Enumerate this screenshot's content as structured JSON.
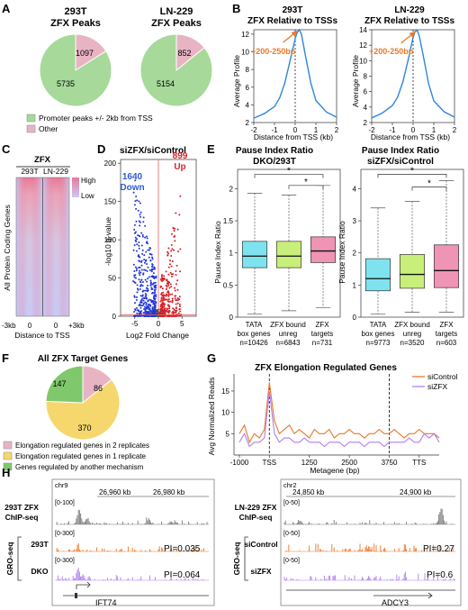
{
  "panel_letters": {
    "A": "A",
    "B": "B",
    "C": "C",
    "D": "D",
    "E": "E",
    "F": "F",
    "G": "G",
    "H": "H"
  },
  "panelA": {
    "pie1_title_line1": "293T",
    "pie1_title_line2": "ZFX Peaks",
    "pie2_title_line1": "LN-229",
    "pie2_title_line2": "ZFX Peaks",
    "legend_promoter": "Promoter peaks +/- 2kb from TSS",
    "legend_other": "Other",
    "colors": {
      "promoter": "#a6d99a",
      "other": "#e8b4c4"
    }
  },
  "panelB": {
    "plot1_title_line1": "293T",
    "plot1_title_line2": "ZFX Relative to TSSs",
    "plot2_title_line1": "LN-229",
    "plot2_title_line2": "ZFX Relative to TSSs",
    "annotation": "+200-250bp",
    "ylabel": "Average Profile",
    "xlabel": "Distance from TSS (kb)",
    "line_color": "#2e86de",
    "arrow_color": "#e8792b"
  },
  "panelC": {
    "title": "ZFX",
    "col1": "293T",
    "col2": "LN-229",
    "legend_high": "High",
    "legend_low": "Low",
    "ylabel": "All Protein Coding Genes",
    "tick_left": "-3kb",
    "tick_mid": "0",
    "tick_mid2": "0",
    "tick_right": "+3kb",
    "xlabel": "Distance to TSS"
  },
  "panelD": {
    "title": "siZFX/siControl",
    "down_count": "1640",
    "down_label": "Down",
    "up_count": "899",
    "up_label": "Up",
    "ylabel": "-log10 q-value",
    "xlabel": "Log2 Fold Change"
  },
  "panelE": {
    "plot1_title_line1": "Pause Index Ratio",
    "plot1_title_line2": "DKO/293T",
    "plot2_title_line1": "Pause Index Ratio",
    "plot2_title_line2": "siZFX/siControl",
    "ylabel": "Pause Index Ratio",
    "star": "*",
    "groups1": [
      {
        "name1": "TATA",
        "name2": "box genes",
        "n": "n=10426"
      },
      {
        "name1": "ZFX bound",
        "name2": "unreg",
        "n": "n=6843"
      },
      {
        "name1": "ZFX",
        "name2": "targets",
        "n": "n=731"
      }
    ],
    "groups2": [
      {
        "name1": "TATA",
        "name2": "box genes",
        "n": "n=9773"
      },
      {
        "name1": "ZFX bound",
        "name2": "unreg",
        "n": "n=3520"
      },
      {
        "name1": "ZFX",
        "name2": "targets",
        "n": "n=603"
      }
    ],
    "colors": [
      "#7fe3ef",
      "#c8ef7a",
      "#ef94b4"
    ]
  },
  "panelF": {
    "title": "All ZFX Target Genes",
    "legend": [
      {
        "label": "Elongation regulated genes in 2 replicates",
        "color": "#e8b4c4"
      },
      {
        "label": "Elongation regulated genes in 1 replicate",
        "color": "#f5d76e"
      },
      {
        "label": "Genes regulated by another mechanism",
        "color": "#7fc86b"
      }
    ]
  },
  "panelG": {
    "title": "ZFX Elongation Regulated Genes",
    "ylabel": "Avg Normalized Reads",
    "xlabel": "Metagene (bp)",
    "legend_sicontrol": "siControl",
    "legend_sizfx": "siZFX",
    "colors": {
      "siControl": "#e8792b",
      "siZFX": "#b07ff0"
    }
  },
  "panelH": {
    "left": {
      "chrom": "chr9",
      "coord1": "26,960 kb",
      "coord2": "26,980 kb",
      "chip_label_line1": "293T ZFX",
      "chip_label_line2": "ChIP-seq",
      "chip_range": "[0-100]",
      "gro_range1": "[0-300]",
      "gro_range2": "[0-300]",
      "row1": "293T",
      "row2": "DKO",
      "gro_label": "GRO-seq",
      "pi1": "PI=0.035",
      "pi2": "PI=0.064",
      "gene": "IFT74"
    },
    "right": {
      "chrom": "chr2",
      "coord1": "24,850 kb",
      "coord2": "24,900 kb",
      "chip_label_line1": "LN-229 ZFX",
      "chip_label_line2": "ChIP-seq",
      "chip_range": "[0-50]",
      "gro_range1": "[0-50]",
      "gro_range2": "[0-50]",
      "row1": "siControl",
      "row2": "siZFX",
      "gro_label": "GRO-seq",
      "pi1": "PI=0.27",
      "pi2": "PI=0.6",
      "gene": "ADCY3"
    },
    "colors": {
      "chip": "#7a7a7a",
      "gro1": "#e8792b",
      "gro2": "#b07ff0"
    }
  },
  "chart_data": [
    {
      "type": "pie",
      "title": "293T ZFX Peaks",
      "categories": [
        "Promoter peaks +/- 2kb from TSS",
        "Other"
      ],
      "values": [
        5735,
        1097
      ]
    },
    {
      "type": "pie",
      "title": "LN-229 ZFX Peaks",
      "categories": [
        "Promoter peaks +/- 2kb from TSS",
        "Other"
      ],
      "values": [
        5154,
        852
      ]
    },
    {
      "type": "line",
      "title": "293T ZFX Relative to TSSs",
      "xlabel": "Distance from TSS (kb)",
      "ylabel": "Average Profile",
      "xlim": [
        -2,
        2
      ],
      "ylim": [
        2,
        12.5
      ],
      "xticks": [
        -2,
        -1,
        0,
        1,
        2
      ],
      "yticks": [
        2,
        4,
        6,
        8,
        10,
        12
      ],
      "x": [
        -2,
        -1.5,
        -1,
        -0.75,
        -0.5,
        -0.25,
        0,
        0.1,
        0.2,
        0.3,
        0.5,
        0.75,
        1,
        1.5,
        2
      ],
      "y": [
        2.5,
        3.0,
        3.8,
        4.8,
        6.5,
        9.0,
        11.5,
        12.2,
        12.5,
        12.0,
        9.5,
        6.5,
        4.5,
        3.2,
        2.6
      ]
    },
    {
      "type": "line",
      "title": "LN-229 ZFX Relative to TSSs",
      "xlabel": "Distance from TSS (kb)",
      "ylabel": "Average Profile",
      "xlim": [
        -2,
        2
      ],
      "ylim": [
        2,
        14
      ],
      "xticks": [
        -2,
        -1,
        0,
        1,
        2
      ],
      "yticks": [
        2,
        4,
        6,
        8,
        10,
        12,
        14
      ],
      "x": [
        -2,
        -1.5,
        -1,
        -0.75,
        -0.5,
        -0.25,
        0,
        0.1,
        0.2,
        0.3,
        0.5,
        0.75,
        1,
        1.5,
        2
      ],
      "y": [
        2.6,
        3.2,
        4.2,
        5.3,
        7.2,
        10.0,
        13.0,
        13.8,
        13.9,
        13.2,
        10.5,
        7.0,
        4.8,
        3.4,
        2.7
      ]
    },
    {
      "type": "heatmap",
      "title": "ZFX",
      "columns": [
        "293T",
        "LN-229"
      ],
      "xlabel": "Distance to TSS",
      "ylabel": "All Protein Coding Genes",
      "legend": [
        "High",
        "Low"
      ]
    },
    {
      "type": "scatter",
      "title": "siZFX/siControl",
      "xlabel": "Log2 Fold Change",
      "ylabel": "-log10 q-value",
      "xlim": [
        -8,
        8
      ],
      "ylim": [
        0,
        205
      ],
      "xticks": [
        -5,
        0,
        5
      ],
      "yticks": [
        0,
        50,
        100,
        150,
        200
      ],
      "series": [
        {
          "name": "Down",
          "count": 1640
        },
        {
          "name": "Up",
          "count": 899
        }
      ]
    },
    {
      "type": "box",
      "title": "Pause Index Ratio DKO/293T",
      "ylabel": "Pause Index Ratio",
      "ylim": [
        0,
        2.3
      ],
      "yticks": [
        0,
        0.5,
        1,
        1.5,
        2
      ],
      "categories": [
        "TATA box genes",
        "ZFX bound unreg",
        "ZFX targets"
      ],
      "n": [
        10426,
        6843,
        731
      ],
      "boxes": [
        {
          "whisker_low": 0.05,
          "q1": 0.77,
          "median": 0.95,
          "q3": 1.18,
          "whisker_high": 1.93
        },
        {
          "whisker_low": 0.1,
          "q1": 0.77,
          "median": 0.95,
          "q3": 1.18,
          "whisker_high": 1.9
        },
        {
          "whisker_low": 0.15,
          "q1": 0.85,
          "median": 1.03,
          "q3": 1.25,
          "whisker_high": 2.05
        }
      ]
    },
    {
      "type": "box",
      "title": "Pause Index Ratio siZFX/siControl",
      "ylabel": "Pause Index Ratio",
      "ylim": [
        0,
        4.6
      ],
      "yticks": [
        0,
        1,
        2,
        3,
        4
      ],
      "categories": [
        "TATA box genes",
        "ZFX bound unreg",
        "ZFX targets"
      ],
      "n": [
        9773,
        3520,
        603
      ],
      "boxes": [
        {
          "whisker_low": 0.1,
          "q1": 0.82,
          "median": 1.2,
          "q3": 1.82,
          "whisker_high": 3.4
        },
        {
          "whisker_low": 0.15,
          "q1": 0.9,
          "median": 1.33,
          "q3": 1.95,
          "whisker_high": 3.6
        },
        {
          "whisker_low": 0.15,
          "q1": 0.92,
          "median": 1.45,
          "q3": 2.25,
          "whisker_high": 4.25
        }
      ]
    },
    {
      "type": "pie",
      "title": "All ZFX Target Genes",
      "categories": [
        "Elongation regulated genes in 2 replicates",
        "Elongation regulated genes in 1 replicate",
        "Genes regulated by another mechanism"
      ],
      "values": [
        86,
        370,
        147
      ]
    },
    {
      "type": "line",
      "title": "ZFX Elongation Regulated Genes",
      "xlabel": "Metagene (bp)",
      "ylabel": "Avg Normalized Reads",
      "xticks": [
        "-1000",
        "TSS",
        "1250",
        "2500",
        "3750",
        "TTS"
      ],
      "yticks": [
        5,
        10,
        15
      ],
      "ylim": [
        0,
        19
      ],
      "x": [
        0,
        1,
        2,
        3,
        4,
        5,
        6,
        7,
        8,
        9,
        10,
        11,
        12,
        13,
        14,
        15,
        16,
        17,
        18,
        19,
        20,
        21,
        22,
        23,
        24,
        25,
        26,
        27,
        28,
        29,
        30,
        31,
        32,
        33,
        34,
        35,
        36,
        37,
        38,
        39,
        40
      ],
      "series": [
        {
          "name": "siControl",
          "values": [
            5,
            7,
            3,
            5,
            4,
            6,
            17,
            8,
            5,
            6,
            7,
            5,
            6,
            5,
            4,
            6,
            5,
            5,
            6,
            4,
            5,
            5,
            6,
            5,
            5,
            4,
            5,
            5,
            6,
            5,
            5,
            6,
            5,
            4,
            5,
            5,
            6,
            5,
            5,
            5,
            4
          ]
        },
        {
          "name": "siZFX",
          "values": [
            3,
            5,
            2,
            3,
            3,
            4,
            15,
            5,
            3,
            4,
            4,
            3,
            3,
            4,
            3,
            3,
            3,
            2,
            3,
            3,
            3,
            2,
            3,
            3,
            3,
            2,
            3,
            3,
            3,
            2,
            3,
            3,
            3,
            3,
            4,
            3,
            3,
            5,
            4,
            5,
            3
          ]
        }
      ]
    }
  ]
}
